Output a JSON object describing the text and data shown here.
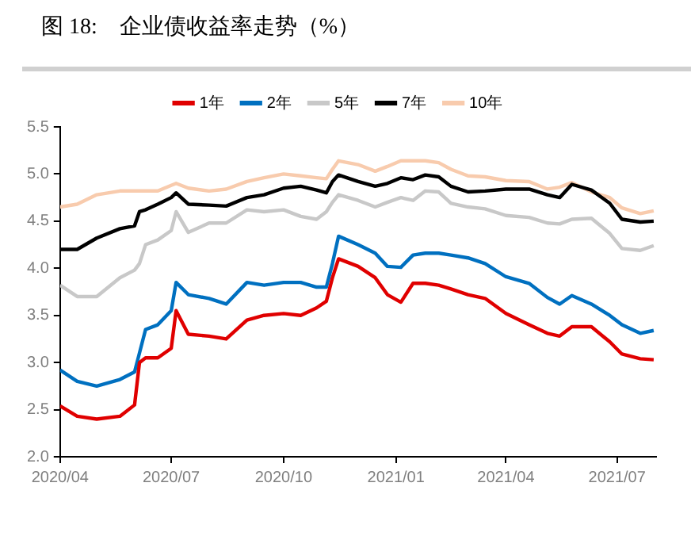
{
  "chart_data": {
    "type": "line",
    "title": "图 18:    企业债收益率走势（%）",
    "x": [
      "2020-04-01",
      "2020-04-15",
      "2020-05-01",
      "2020-05-20",
      "2020-06-01",
      "2020-06-05",
      "2020-06-10",
      "2020-06-20",
      "2020-07-01",
      "2020-07-05",
      "2020-07-15",
      "2020-08-01",
      "2020-08-15",
      "2020-09-01",
      "2020-09-15",
      "2020-10-01",
      "2020-10-15",
      "2020-10-28",
      "2020-11-05",
      "2020-11-10",
      "2020-11-15",
      "2020-12-01",
      "2020-12-15",
      "2020-12-25",
      "2021-01-05",
      "2021-01-15",
      "2021-01-25",
      "2021-02-05",
      "2021-02-15",
      "2021-03-01",
      "2021-03-15",
      "2021-04-01",
      "2021-04-20",
      "2021-05-05",
      "2021-05-15",
      "2021-05-25",
      "2021-06-10",
      "2021-06-25",
      "2021-07-05",
      "2021-07-20",
      "2021-07-31"
    ],
    "series": [
      {
        "name": "1年",
        "color": "#e00000",
        "values": [
          2.54,
          2.43,
          2.4,
          2.43,
          2.55,
          3.0,
          3.05,
          3.05,
          3.15,
          3.55,
          3.3,
          3.28,
          3.25,
          3.45,
          3.5,
          3.52,
          3.5,
          3.58,
          3.65,
          3.9,
          4.1,
          4.02,
          3.9,
          3.72,
          3.64,
          3.84,
          3.84,
          3.82,
          3.78,
          3.72,
          3.68,
          3.52,
          3.4,
          3.31,
          3.28,
          3.38,
          3.38,
          3.22,
          3.09,
          3.04,
          3.03
        ]
      },
      {
        "name": "2年",
        "color": "#0070c0",
        "values": [
          2.92,
          2.8,
          2.75,
          2.82,
          2.9,
          3.1,
          3.35,
          3.4,
          3.55,
          3.85,
          3.72,
          3.68,
          3.62,
          3.85,
          3.82,
          3.85,
          3.85,
          3.8,
          3.8,
          4.05,
          4.34,
          4.25,
          4.16,
          4.02,
          4.01,
          4.14,
          4.16,
          4.16,
          4.14,
          4.11,
          4.05,
          3.91,
          3.84,
          3.69,
          3.62,
          3.71,
          3.62,
          3.5,
          3.4,
          3.31,
          3.34
        ]
      },
      {
        "name": "5年",
        "color": "#c8c8c8",
        "values": [
          3.82,
          3.7,
          3.7,
          3.9,
          3.98,
          4.05,
          4.25,
          4.3,
          4.4,
          4.6,
          4.38,
          4.48,
          4.48,
          4.62,
          4.6,
          4.62,
          4.55,
          4.52,
          4.6,
          4.7,
          4.78,
          4.72,
          4.65,
          4.7,
          4.75,
          4.72,
          4.82,
          4.81,
          4.69,
          4.65,
          4.63,
          4.56,
          4.54,
          4.48,
          4.47,
          4.52,
          4.53,
          4.37,
          4.21,
          4.19,
          4.24
        ]
      },
      {
        "name": "7年",
        "color": "#000000",
        "values": [
          4.2,
          4.2,
          4.32,
          4.42,
          4.45,
          4.6,
          4.62,
          4.68,
          4.75,
          4.8,
          4.68,
          4.67,
          4.66,
          4.75,
          4.78,
          4.85,
          4.87,
          4.83,
          4.8,
          4.92,
          4.99,
          4.92,
          4.87,
          4.9,
          4.96,
          4.94,
          4.99,
          4.97,
          4.87,
          4.81,
          4.82,
          4.84,
          4.84,
          4.78,
          4.75,
          4.89,
          4.83,
          4.69,
          4.52,
          4.49,
          4.5
        ]
      },
      {
        "name": "10年",
        "color": "#f8cbad",
        "values": [
          4.65,
          4.68,
          4.78,
          4.82,
          4.82,
          4.82,
          4.82,
          4.82,
          4.88,
          4.9,
          4.85,
          4.82,
          4.84,
          4.92,
          4.96,
          5.0,
          4.98,
          4.96,
          4.95,
          5.05,
          5.14,
          5.1,
          5.03,
          5.08,
          5.14,
          5.14,
          5.14,
          5.12,
          5.05,
          4.98,
          4.97,
          4.93,
          4.92,
          4.84,
          4.86,
          4.91,
          4.81,
          4.75,
          4.64,
          4.58,
          4.61
        ]
      }
    ],
    "xlim": [
      "2020-04-01",
      "2021-08-02"
    ],
    "xticks": [
      {
        "value": "2020-04-01",
        "label": "2020/04"
      },
      {
        "value": "2020-07-01",
        "label": "2020/07"
      },
      {
        "value": "2020-10-01",
        "label": "2020/10"
      },
      {
        "value": "2021-01-01",
        "label": "2021/01"
      },
      {
        "value": "2021-04-01",
        "label": "2021/04"
      },
      {
        "value": "2021-07-01",
        "label": "2021/07"
      }
    ],
    "ylim": [
      2.0,
      5.5
    ],
    "yticks": [
      {
        "value": 2.0,
        "label": "2.0"
      },
      {
        "value": 2.5,
        "label": "2.5"
      },
      {
        "value": 3.0,
        "label": "3.0"
      },
      {
        "value": 3.5,
        "label": "3.5"
      },
      {
        "value": 4.0,
        "label": "4.0"
      },
      {
        "value": 4.5,
        "label": "4.5"
      },
      {
        "value": 5.0,
        "label": "5.0"
      },
      {
        "value": 5.5,
        "label": "5.5"
      }
    ],
    "grid": false,
    "legend": "top",
    "marker": "none",
    "line_style": "solid"
  }
}
